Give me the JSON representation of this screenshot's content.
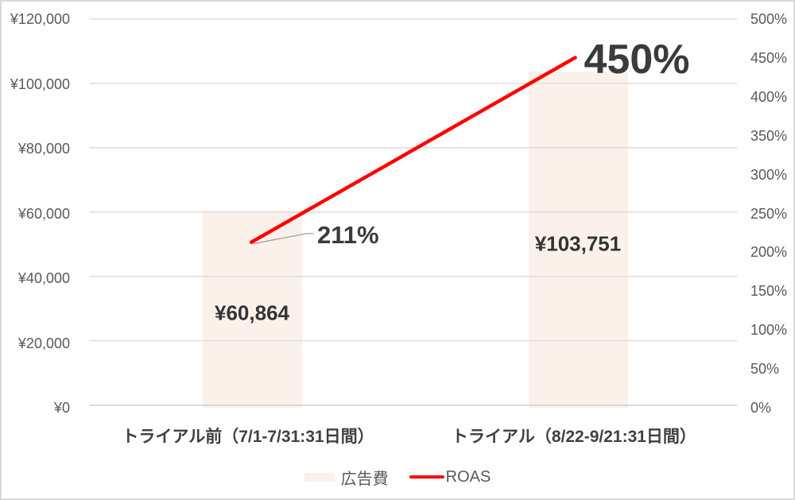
{
  "chart_data": {
    "type": "bar",
    "subtype": "combo-bar-line",
    "title": "",
    "categories": [
      "トライアル前（7/1-7/31:31日間）",
      "トライアル（8/22-9/21:31日間）"
    ],
    "series": [
      {
        "name": "広告費",
        "type": "bar",
        "axis": "left",
        "values": [
          60864,
          103751
        ],
        "data_labels": [
          "¥60,864",
          "¥103,751"
        ],
        "color": "#fbf1ea"
      },
      {
        "name": "ROAS",
        "type": "line",
        "axis": "right",
        "values": [
          211,
          450
        ],
        "data_labels": [
          "211%",
          "450%"
        ],
        "color": "#ff0000"
      }
    ],
    "left_axis": {
      "min": 0,
      "max": 120000,
      "step": 20000,
      "tick_labels": [
        "¥120,000",
        "¥100,000",
        "¥80,000",
        "¥60,000",
        "¥40,000",
        "¥20,000",
        "¥0"
      ]
    },
    "right_axis": {
      "min": 0,
      "max": 500,
      "step": 50,
      "tick_labels": [
        "500%",
        "450%",
        "400%",
        "350%",
        "300%",
        "250%",
        "200%",
        "150%",
        "100%",
        "50%",
        "0%"
      ]
    },
    "gridlines": true,
    "legend_position": "bottom"
  },
  "colors": {
    "background": "#ffffff",
    "chart_border": "#d9d9d9",
    "gridline": "#d9d9d9",
    "axis_line": "#c6c6c6",
    "axis_text": "#595959",
    "category_text": "#404040",
    "data_label_text": "#333333",
    "point_label_text": "#3b3b3b",
    "leader_line": "#a0a0a0",
    "bar_fill": "#fbf1ea",
    "line_stroke": "#ff0000"
  }
}
